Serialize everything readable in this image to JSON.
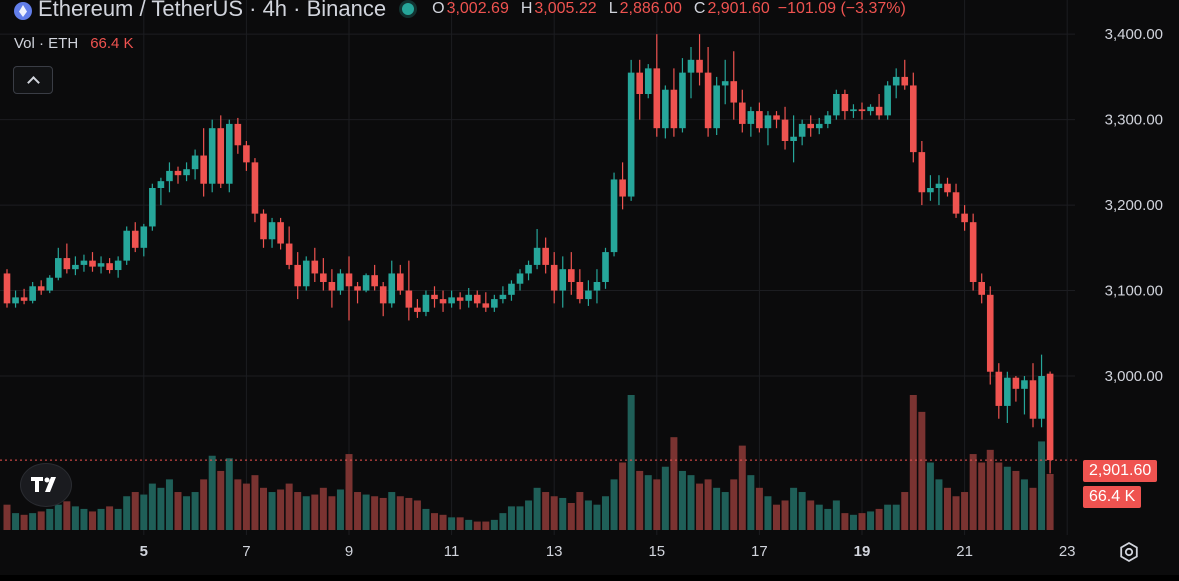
{
  "header": {
    "title": "Ethereum / TetherUS · 4h · Binance",
    "ohlc": [
      {
        "key": "O",
        "value": "3,002.69"
      },
      {
        "key": "H",
        "value": "3,005.22"
      },
      {
        "key": "L",
        "value": "2,886.00"
      },
      {
        "key": "C",
        "value": "2,901.60"
      }
    ],
    "change": "−101.09 (−3.37%)"
  },
  "volume_legend": {
    "label": "Vol · ETH",
    "value": "66.4 K"
  },
  "price_tag": "2,901.60",
  "volume_tag": "66.4 K",
  "colors": {
    "up": "#26a69a",
    "down": "#ef5350",
    "up_vol": "#1f5f58",
    "down_vol": "#7a3331",
    "background": "#0b0b0c",
    "grid": "#1c1d21",
    "text": "#d1d4dc"
  },
  "icons": [
    "ethereum-icon",
    "market-open-icon",
    "chevron-up-icon",
    "tradingview-logo-icon",
    "settings-icon"
  ],
  "chart_data": {
    "type": "candlestick",
    "timeframe": "4h",
    "y_ticks": [
      3400,
      3300,
      3200,
      3100,
      3000
    ],
    "y_tick_labels": [
      "3,400.00",
      "3,300.00",
      "3,200.00",
      "3,100.00",
      "3,000.00"
    ],
    "ylim": [
      2890,
      3440
    ],
    "x_ticks": [
      {
        "label": "5",
        "bold": true,
        "index": 16
      },
      {
        "label": "7",
        "bold": false,
        "index": 28
      },
      {
        "label": "9",
        "bold": false,
        "index": 40
      },
      {
        "label": "11",
        "bold": false,
        "index": 52
      },
      {
        "label": "13",
        "bold": false,
        "index": 64
      },
      {
        "label": "15",
        "bold": false,
        "index": 76
      },
      {
        "label": "17",
        "bold": false,
        "index": 88
      },
      {
        "label": "19",
        "bold": true,
        "index": 100
      },
      {
        "label": "21",
        "bold": false,
        "index": 112
      },
      {
        "label": "23",
        "bold": false,
        "index": 124
      }
    ],
    "last_price": 2901.6,
    "vol_max": 160,
    "candles": [
      [
        3120,
        3125,
        3080,
        3085,
        30
      ],
      [
        3085,
        3100,
        3080,
        3092,
        20
      ],
      [
        3092,
        3102,
        3084,
        3088,
        18
      ],
      [
        3088,
        3110,
        3085,
        3105,
        20
      ],
      [
        3105,
        3112,
        3095,
        3100,
        22
      ],
      [
        3100,
        3118,
        3097,
        3115,
        25
      ],
      [
        3115,
        3150,
        3112,
        3138,
        30
      ],
      [
        3138,
        3155,
        3120,
        3125,
        34
      ],
      [
        3125,
        3140,
        3118,
        3130,
        28
      ],
      [
        3130,
        3142,
        3122,
        3135,
        25
      ],
      [
        3135,
        3145,
        3122,
        3128,
        22
      ],
      [
        3128,
        3140,
        3120,
        3132,
        25
      ],
      [
        3132,
        3138,
        3120,
        3124,
        28
      ],
      [
        3124,
        3140,
        3115,
        3135,
        25
      ],
      [
        3135,
        3175,
        3130,
        3170,
        40
      ],
      [
        3170,
        3180,
        3145,
        3150,
        45
      ],
      [
        3150,
        3178,
        3140,
        3175,
        42
      ],
      [
        3175,
        3225,
        3170,
        3220,
        55
      ],
      [
        3220,
        3232,
        3200,
        3228,
        50
      ],
      [
        3228,
        3250,
        3215,
        3240,
        60
      ],
      [
        3240,
        3245,
        3225,
        3235,
        45
      ],
      [
        3235,
        3250,
        3228,
        3242,
        40
      ],
      [
        3242,
        3265,
        3230,
        3258,
        45
      ],
      [
        3258,
        3290,
        3210,
        3225,
        60
      ],
      [
        3225,
        3300,
        3215,
        3290,
        88
      ],
      [
        3290,
        3305,
        3220,
        3225,
        70
      ],
      [
        3225,
        3300,
        3215,
        3295,
        85
      ],
      [
        3295,
        3302,
        3260,
        3270,
        60
      ],
      [
        3270,
        3275,
        3240,
        3250,
        55
      ],
      [
        3250,
        3255,
        3180,
        3190,
        65
      ],
      [
        3190,
        3195,
        3150,
        3160,
        50
      ],
      [
        3160,
        3185,
        3150,
        3180,
        45
      ],
      [
        3180,
        3185,
        3148,
        3155,
        48
      ],
      [
        3155,
        3175,
        3125,
        3130,
        55
      ],
      [
        3130,
        3145,
        3090,
        3105,
        45
      ],
      [
        3105,
        3140,
        3100,
        3135,
        40
      ],
      [
        3135,
        3150,
        3110,
        3120,
        42
      ],
      [
        3120,
        3138,
        3100,
        3110,
        50
      ],
      [
        3110,
        3125,
        3080,
        3100,
        40
      ],
      [
        3100,
        3125,
        3095,
        3120,
        48
      ],
      [
        3120,
        3140,
        3065,
        3105,
        90
      ],
      [
        3105,
        3110,
        3085,
        3100,
        45
      ],
      [
        3100,
        3120,
        3098,
        3118,
        42
      ],
      [
        3118,
        3130,
        3100,
        3105,
        40
      ],
      [
        3105,
        3110,
        3070,
        3085,
        38
      ],
      [
        3085,
        3135,
        3080,
        3120,
        45
      ],
      [
        3120,
        3130,
        3095,
        3100,
        40
      ],
      [
        3100,
        3135,
        3065,
        3080,
        38
      ],
      [
        3080,
        3090,
        3068,
        3075,
        35
      ],
      [
        3075,
        3100,
        3070,
        3095,
        25
      ],
      [
        3095,
        3105,
        3080,
        3090,
        20
      ],
      [
        3090,
        3100,
        3075,
        3085,
        18
      ],
      [
        3085,
        3100,
        3080,
        3092,
        15
      ],
      [
        3092,
        3098,
        3078,
        3088,
        15
      ],
      [
        3088,
        3103,
        3080,
        3095,
        12
      ],
      [
        3095,
        3100,
        3080,
        3085,
        10
      ],
      [
        3085,
        3098,
        3075,
        3080,
        10
      ],
      [
        3080,
        3095,
        3075,
        3090,
        12
      ],
      [
        3090,
        3105,
        3085,
        3095,
        20
      ],
      [
        3095,
        3112,
        3088,
        3108,
        28
      ],
      [
        3108,
        3125,
        3100,
        3120,
        28
      ],
      [
        3120,
        3135,
        3112,
        3130,
        35
      ],
      [
        3130,
        3172,
        3125,
        3150,
        50
      ],
      [
        3150,
        3162,
        3120,
        3130,
        45
      ],
      [
        3130,
        3145,
        3085,
        3100,
        40
      ],
      [
        3100,
        3140,
        3080,
        3125,
        38
      ],
      [
        3125,
        3145,
        3095,
        3110,
        32
      ],
      [
        3110,
        3125,
        3085,
        3090,
        45
      ],
      [
        3090,
        3112,
        3082,
        3100,
        35
      ],
      [
        3100,
        3125,
        3085,
        3110,
        30
      ],
      [
        3110,
        3150,
        3102,
        3145,
        40
      ],
      [
        3145,
        3238,
        3140,
        3230,
        60
      ],
      [
        3230,
        3250,
        3195,
        3210,
        80
      ],
      [
        3210,
        3370,
        3205,
        3355,
        160
      ],
      [
        3355,
        3370,
        3300,
        3330,
        70
      ],
      [
        3330,
        3365,
        3325,
        3360,
        65
      ],
      [
        3360,
        3400,
        3280,
        3290,
        60
      ],
      [
        3290,
        3340,
        3278,
        3335,
        75
      ],
      [
        3335,
        3360,
        3280,
        3290,
        110
      ],
      [
        3290,
        3372,
        3285,
        3355,
        70
      ],
      [
        3355,
        3385,
        3325,
        3370,
        65
      ],
      [
        3370,
        3400,
        3340,
        3355,
        55
      ],
      [
        3355,
        3385,
        3280,
        3290,
        60
      ],
      [
        3290,
        3350,
        3282,
        3340,
        50
      ],
      [
        3340,
        3370,
        3318,
        3345,
        45
      ],
      [
        3345,
        3380,
        3300,
        3320,
        60
      ],
      [
        3320,
        3335,
        3285,
        3295,
        100
      ],
      [
        3295,
        3315,
        3280,
        3310,
        65
      ],
      [
        3310,
        3320,
        3285,
        3290,
        50
      ],
      [
        3290,
        3310,
        3270,
        3305,
        40
      ],
      [
        3305,
        3310,
        3290,
        3300,
        30
      ],
      [
        3300,
        3315,
        3265,
        3275,
        35
      ],
      [
        3275,
        3305,
        3250,
        3280,
        50
      ],
      [
        3280,
        3300,
        3270,
        3295,
        45
      ],
      [
        3295,
        3305,
        3280,
        3290,
        35
      ],
      [
        3290,
        3302,
        3283,
        3295,
        30
      ],
      [
        3295,
        3310,
        3290,
        3305,
        25
      ],
      [
        3305,
        3335,
        3300,
        3330,
        35
      ],
      [
        3330,
        3335,
        3300,
        3310,
        20
      ],
      [
        3310,
        3318,
        3302,
        3312,
        18
      ],
      [
        3312,
        3320,
        3300,
        3310,
        20
      ],
      [
        3310,
        3318,
        3305,
        3315,
        22
      ],
      [
        3315,
        3330,
        3300,
        3305,
        25
      ],
      [
        3305,
        3345,
        3300,
        3340,
        30
      ],
      [
        3340,
        3360,
        3325,
        3350,
        30
      ],
      [
        3350,
        3370,
        3335,
        3340,
        45
      ],
      [
        3340,
        3355,
        3250,
        3262,
        160
      ],
      [
        3262,
        3275,
        3200,
        3215,
        140
      ],
      [
        3215,
        3235,
        3205,
        3220,
        80
      ],
      [
        3220,
        3235,
        3200,
        3225,
        60
      ],
      [
        3225,
        3232,
        3210,
        3215,
        50
      ],
      [
        3215,
        3225,
        3185,
        3190,
        40
      ],
      [
        3190,
        3200,
        3170,
        3180,
        45
      ],
      [
        3180,
        3190,
        3100,
        3110,
        90
      ],
      [
        3110,
        3120,
        3085,
        3095,
        80
      ],
      [
        3095,
        3105,
        2990,
        3005,
        95
      ],
      [
        3005,
        3015,
        2950,
        2965,
        80
      ],
      [
        2965,
        3005,
        2945,
        2998,
        75
      ],
      [
        2998,
        3000,
        2970,
        2985,
        70
      ],
      [
        2985,
        3000,
        2955,
        2995,
        60
      ],
      [
        2995,
        3015,
        2940,
        2950,
        50
      ],
      [
        2950,
        3025,
        2940,
        3000,
        105
      ],
      [
        3002.69,
        3005.22,
        2886,
        2901.6,
        66.4
      ]
    ]
  }
}
